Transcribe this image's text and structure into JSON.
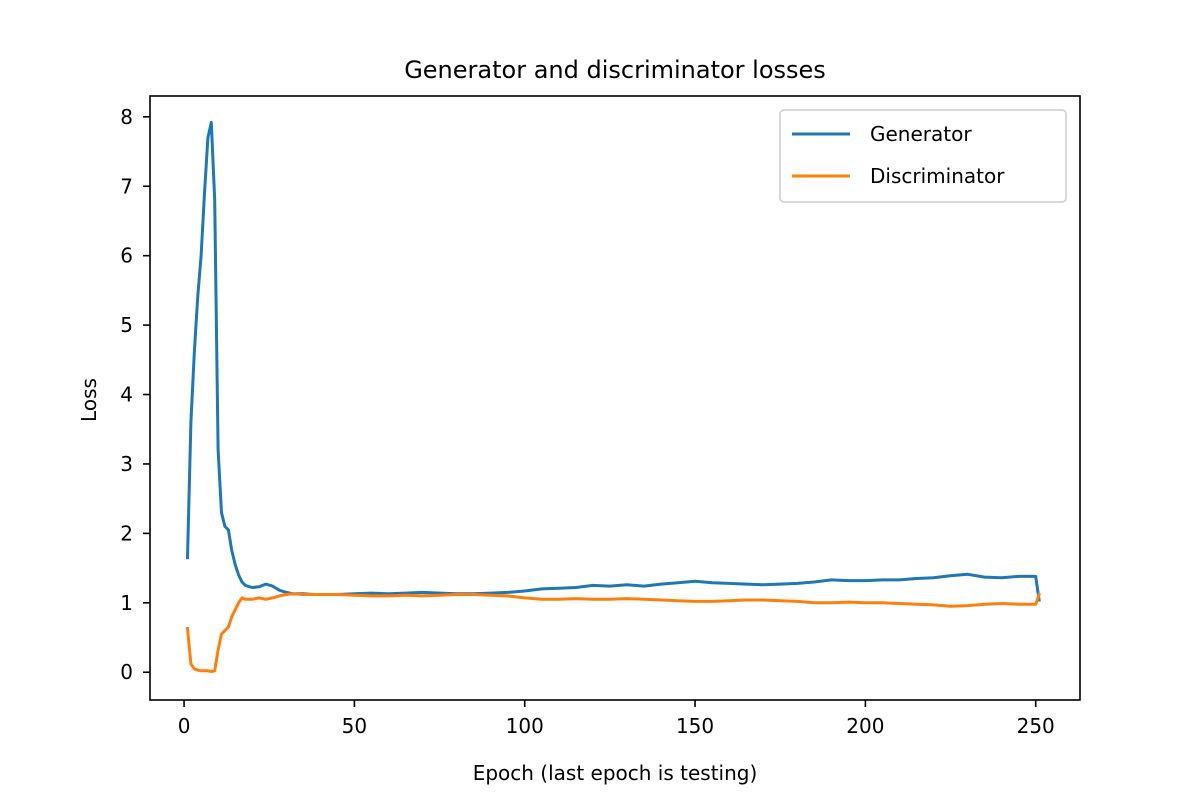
{
  "chart_data": {
    "type": "line",
    "title": "Generator and discriminator losses",
    "xlabel": "Epoch (last epoch is testing)",
    "ylabel": "Loss",
    "xlim": [
      -10,
      263
    ],
    "ylim": [
      -0.4,
      8.3
    ],
    "xticks": [
      0,
      50,
      100,
      150,
      200,
      250
    ],
    "yticks": [
      0,
      1,
      2,
      3,
      4,
      5,
      6,
      7,
      8
    ],
    "grid": false,
    "legend_position": "top-right",
    "series": [
      {
        "name": "Generator",
        "color": "#1f77b4",
        "x": [
          1,
          2,
          3,
          4,
          5,
          6,
          7,
          8,
          9,
          10,
          11,
          12,
          13,
          14,
          15,
          16,
          17,
          18,
          20,
          22,
          24,
          26,
          28,
          30,
          32,
          35,
          38,
          40,
          45,
          50,
          55,
          60,
          65,
          70,
          75,
          80,
          85,
          90,
          95,
          100,
          105,
          110,
          115,
          120,
          125,
          130,
          135,
          140,
          145,
          150,
          155,
          160,
          165,
          170,
          175,
          180,
          185,
          190,
          195,
          200,
          205,
          210,
          215,
          220,
          225,
          230,
          235,
          240,
          245,
          250,
          251
        ],
        "y": [
          1.65,
          3.6,
          4.6,
          5.4,
          6.0,
          6.9,
          7.7,
          7.92,
          6.8,
          3.2,
          2.3,
          2.1,
          2.05,
          1.75,
          1.55,
          1.4,
          1.3,
          1.25,
          1.22,
          1.23,
          1.27,
          1.24,
          1.18,
          1.15,
          1.13,
          1.13,
          1.12,
          1.12,
          1.12,
          1.13,
          1.14,
          1.13,
          1.14,
          1.15,
          1.14,
          1.13,
          1.13,
          1.14,
          1.15,
          1.17,
          1.2,
          1.21,
          1.22,
          1.25,
          1.24,
          1.26,
          1.24,
          1.27,
          1.29,
          1.31,
          1.29,
          1.28,
          1.27,
          1.26,
          1.27,
          1.28,
          1.3,
          1.33,
          1.32,
          1.32,
          1.33,
          1.33,
          1.35,
          1.36,
          1.39,
          1.41,
          1.37,
          1.36,
          1.38,
          1.38,
          1.04
        ]
      },
      {
        "name": "Discriminator",
        "color": "#ff7f0e",
        "x": [
          1,
          2,
          3,
          4,
          5,
          6,
          7,
          8,
          9,
          10,
          11,
          12,
          13,
          14,
          15,
          16,
          17,
          18,
          20,
          22,
          24,
          26,
          28,
          30,
          32,
          35,
          38,
          40,
          45,
          50,
          55,
          60,
          65,
          70,
          75,
          80,
          85,
          90,
          95,
          100,
          105,
          110,
          115,
          120,
          125,
          130,
          135,
          140,
          145,
          150,
          155,
          160,
          165,
          170,
          175,
          180,
          185,
          190,
          195,
          200,
          205,
          210,
          215,
          220,
          225,
          230,
          235,
          240,
          245,
          250,
          251
        ],
        "y": [
          0.63,
          0.12,
          0.05,
          0.03,
          0.02,
          0.02,
          0.02,
          0.01,
          0.02,
          0.32,
          0.55,
          0.6,
          0.65,
          0.8,
          0.9,
          1.0,
          1.07,
          1.05,
          1.05,
          1.07,
          1.05,
          1.07,
          1.1,
          1.12,
          1.13,
          1.12,
          1.12,
          1.12,
          1.12,
          1.11,
          1.1,
          1.1,
          1.11,
          1.1,
          1.11,
          1.12,
          1.12,
          1.11,
          1.1,
          1.07,
          1.05,
          1.05,
          1.06,
          1.05,
          1.05,
          1.06,
          1.05,
          1.04,
          1.03,
          1.02,
          1.02,
          1.03,
          1.04,
          1.04,
          1.03,
          1.02,
          1.0,
          1.0,
          1.01,
          1.0,
          1.0,
          0.99,
          0.98,
          0.97,
          0.95,
          0.96,
          0.98,
          0.99,
          0.98,
          0.98,
          1.12
        ]
      }
    ]
  }
}
